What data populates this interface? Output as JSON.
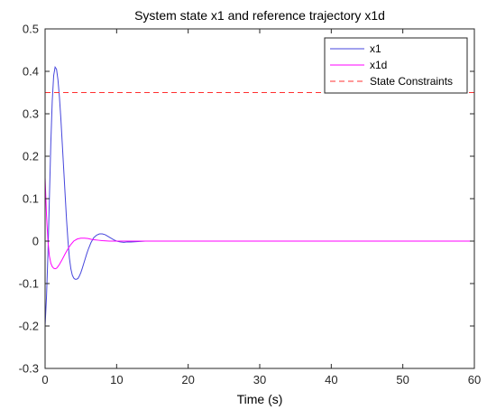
{
  "chart_data": {
    "type": "line",
    "title": "System state x1 and reference trajectory x1d",
    "xlabel": "Time (s)",
    "ylabel": "",
    "xlim": [
      0,
      60
    ],
    "ylim": [
      -0.3,
      0.5
    ],
    "xticks": [
      0,
      10,
      20,
      30,
      40,
      50,
      60
    ],
    "yticks": [
      -0.3,
      -0.2,
      -0.1,
      0,
      0.1,
      0.2,
      0.3,
      0.4,
      0.5
    ],
    "grid": false,
    "legend_position": "top-right",
    "series": [
      {
        "name": "x1",
        "color": "#4646dc",
        "style": "solid",
        "x": [
          0,
          0.2,
          0.4,
          0.6,
          0.8,
          1.0,
          1.2,
          1.4,
          1.6,
          1.8,
          2.0,
          2.2,
          2.4,
          2.6,
          2.8,
          3.0,
          3.2,
          3.4,
          3.6,
          3.8,
          4.0,
          4.2,
          4.4,
          4.6,
          4.8,
          5.0,
          5.2,
          5.4,
          5.6,
          5.8,
          6.0,
          6.4,
          6.8,
          7.2,
          7.6,
          8.0,
          8.4,
          8.8,
          9.2,
          9.6,
          10.0,
          10.5,
          11.0,
          11.5,
          12.0,
          13.0,
          14.0
        ],
        "y": [
          -0.2,
          -0.13,
          -0.03,
          0.1,
          0.23,
          0.33,
          0.39,
          0.41,
          0.405,
          0.38,
          0.34,
          0.29,
          0.23,
          0.17,
          0.11,
          0.05,
          0.0,
          -0.04,
          -0.065,
          -0.08,
          -0.087,
          -0.09,
          -0.09,
          -0.088,
          -0.082,
          -0.074,
          -0.064,
          -0.053,
          -0.042,
          -0.031,
          -0.021,
          -0.004,
          0.008,
          0.014,
          0.017,
          0.017,
          0.015,
          0.011,
          0.007,
          0.003,
          0.0,
          -0.002,
          -0.003,
          -0.002,
          -0.002,
          -0.001,
          0.0
        ]
      },
      {
        "name": "x1d",
        "color": "#ff00ff",
        "style": "solid",
        "x": [
          0,
          0.2,
          0.4,
          0.6,
          0.8,
          1.0,
          1.2,
          1.4,
          1.6,
          1.8,
          2.0,
          2.4,
          2.8,
          3.2,
          3.6,
          4.0,
          4.5,
          5.0,
          5.5,
          6.0,
          6.5,
          7.0,
          7.5,
          8.0,
          9.0,
          10.0,
          11.0,
          12.0,
          14.0,
          60
        ],
        "y": [
          0.15,
          0.06,
          0.0,
          -0.035,
          -0.052,
          -0.06,
          -0.064,
          -0.065,
          -0.064,
          -0.06,
          -0.055,
          -0.043,
          -0.03,
          -0.018,
          -0.008,
          0.0,
          0.005,
          0.007,
          0.007,
          0.006,
          0.004,
          0.003,
          0.002,
          0.001,
          0.0,
          0.0,
          0.0,
          0.0,
          0.0,
          0.0
        ]
      },
      {
        "name": "State Constraints",
        "color": "#ff3030",
        "style": "dashed",
        "x": [
          0,
          60
        ],
        "y": [
          0.35,
          0.35
        ]
      }
    ]
  }
}
